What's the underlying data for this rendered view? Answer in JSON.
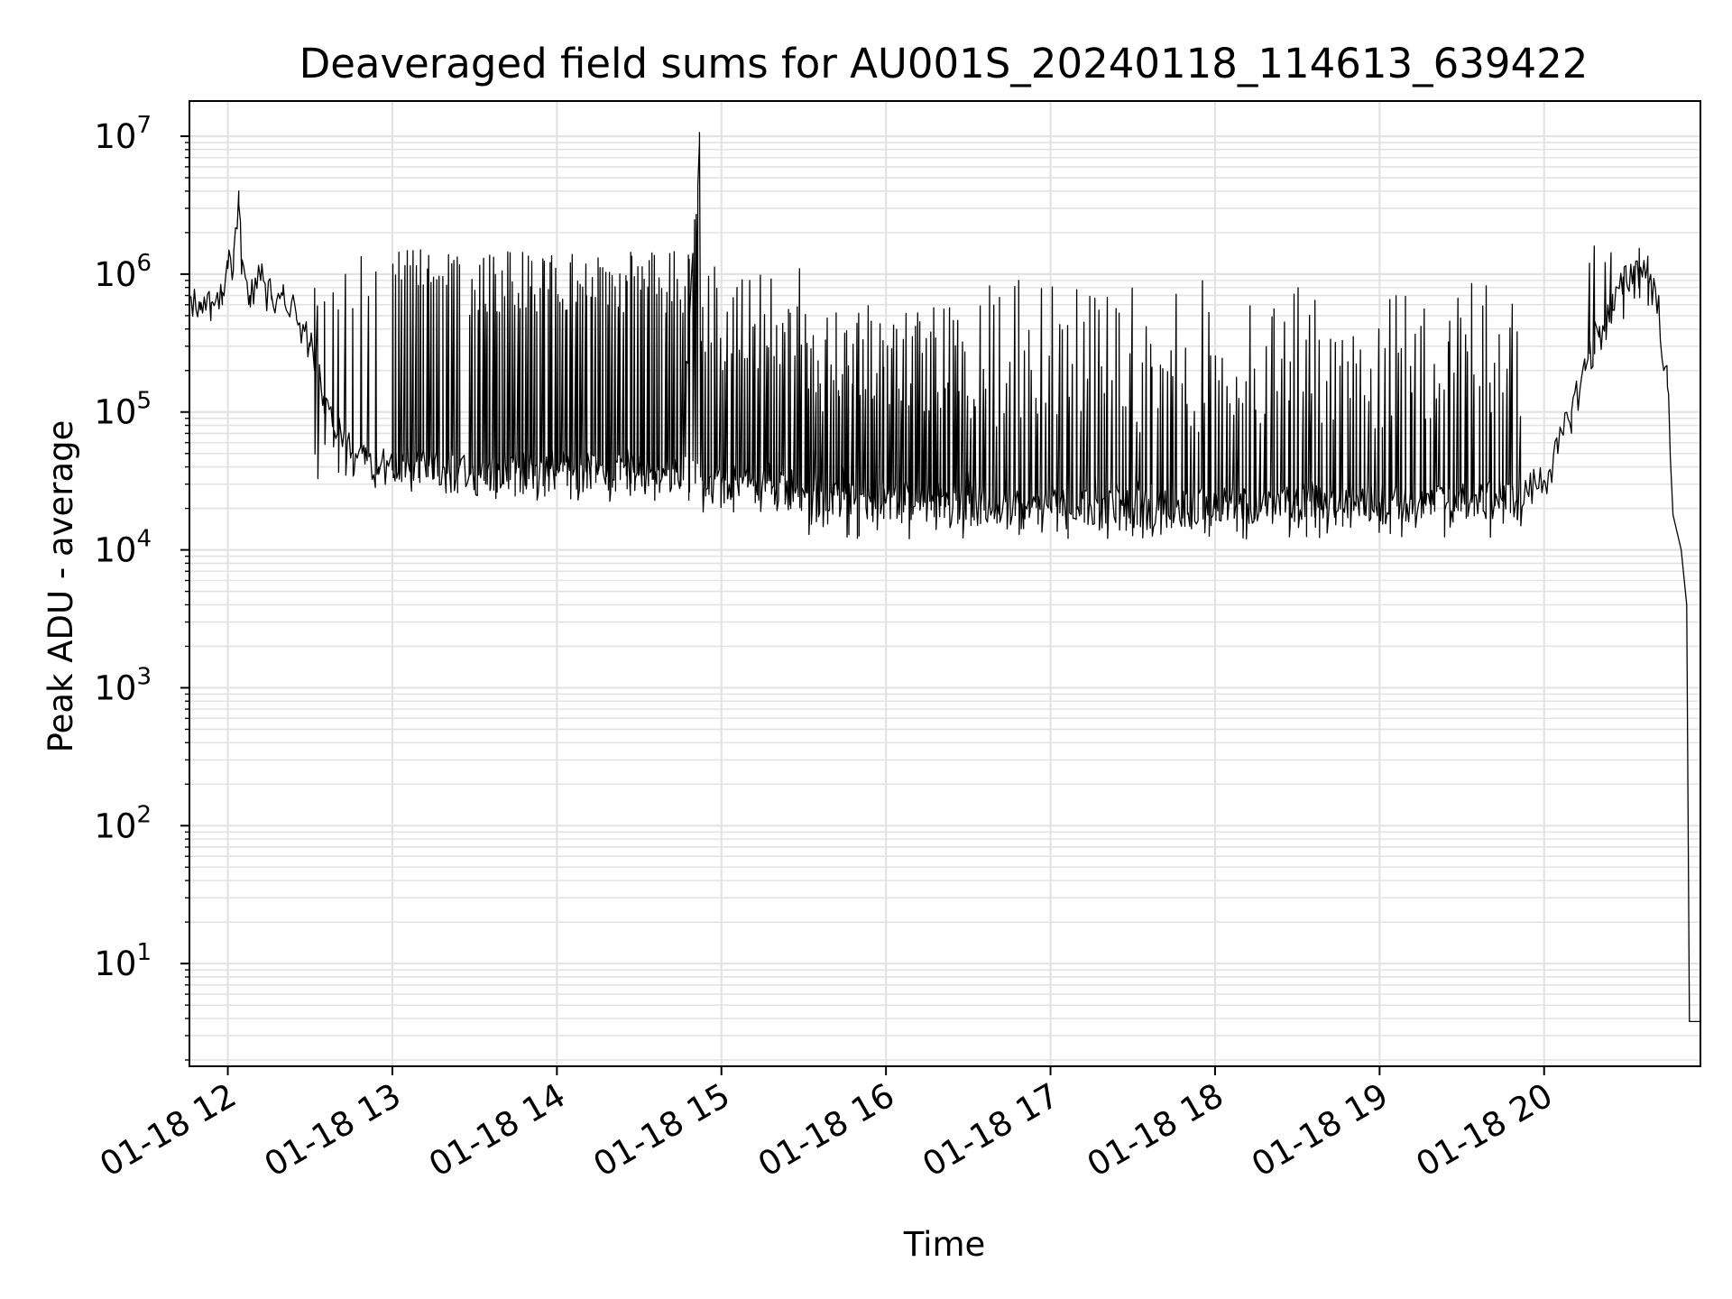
{
  "chart_data": {
    "type": "line",
    "title": "Deaveraged field sums for AU001S_20240118_114613_639422",
    "xlabel": "Time",
    "ylabel": "Peak ADU - average",
    "yscale": "log",
    "ylim": [
      1.8,
      18000000
    ],
    "xlim": [
      "2024-01-18 11:46",
      "2024-01-18 20:57"
    ],
    "grid": "on",
    "colors": {
      "line": "#000000",
      "grid": "#e3e3e3"
    },
    "x_ticks": [
      {
        "t": "2024-01-18 12:00",
        "label": "01-18 12"
      },
      {
        "t": "2024-01-18 13:00",
        "label": "01-18 13"
      },
      {
        "t": "2024-01-18 14:00",
        "label": "01-18 14"
      },
      {
        "t": "2024-01-18 15:00",
        "label": "01-18 15"
      },
      {
        "t": "2024-01-18 16:00",
        "label": "01-18 16"
      },
      {
        "t": "2024-01-18 17:00",
        "label": "01-18 17"
      },
      {
        "t": "2024-01-18 18:00",
        "label": "01-18 18"
      },
      {
        "t": "2024-01-18 19:00",
        "label": "01-18 19"
      },
      {
        "t": "2024-01-18 20:00",
        "label": "01-18 20"
      }
    ],
    "y_ticks": [
      {
        "value": 10,
        "base": "10",
        "exp": "1"
      },
      {
        "value": 100,
        "base": "10",
        "exp": "2"
      },
      {
        "value": 1000,
        "base": "10",
        "exp": "3"
      },
      {
        "value": 10000,
        "base": "10",
        "exp": "4"
      },
      {
        "value": 100000,
        "base": "10",
        "exp": "5"
      },
      {
        "value": 1000000,
        "base": "10",
        "exp": "6"
      },
      {
        "value": 10000000,
        "base": "10",
        "exp": "7"
      }
    ],
    "series": [
      {
        "values": [
          [
            "2024-01-18 11:46",
            600000
          ],
          [
            "2024-01-18 11:50",
            550000
          ],
          [
            "2024-01-18 11:54",
            620000
          ],
          [
            "2024-01-18 11:58",
            600000
          ],
          [
            "2024-01-18 12:00",
            1100000
          ],
          [
            "2024-01-18 12:02",
            1050000
          ],
          [
            "2024-01-18 12:04",
            4000000
          ],
          [
            "2024-01-18 12:05",
            1000000
          ],
          [
            "2024-01-18 12:08",
            700000
          ],
          [
            "2024-01-18 12:12",
            900000
          ],
          [
            "2024-01-18 12:16",
            650000
          ],
          [
            "2024-01-18 12:20",
            700000
          ],
          [
            "2024-01-18 12:25",
            500000
          ],
          [
            "2024-01-18 12:30",
            300000
          ],
          [
            "2024-01-18 12:35",
            130000
          ],
          [
            "2024-01-18 12:40",
            70000
          ],
          [
            "2024-01-18 12:45",
            50000
          ],
          [
            "2024-01-18 12:50",
            42000
          ],
          [
            "2024-01-18 12:55",
            40000
          ],
          [
            "2024-01-18 13:00",
            38000
          ],
          [
            "2024-01-18 13:10",
            38000
          ],
          [
            "2024-01-18 13:20",
            36000
          ],
          [
            "2024-01-18 13:30",
            35000
          ],
          [
            "2024-01-18 13:45",
            36000
          ],
          [
            "2024-01-18 14:00",
            38000
          ],
          [
            "2024-01-18 14:15",
            36000
          ],
          [
            "2024-01-18 14:30",
            35000
          ],
          [
            "2024-01-18 14:45",
            33000
          ],
          [
            "2024-01-18 14:52",
            9000000
          ],
          [
            "2024-01-18 14:53",
            32000
          ],
          [
            "2024-01-18 15:00",
            30000
          ],
          [
            "2024-01-18 15:20",
            28000
          ],
          [
            "2024-01-18 15:40",
            26000
          ],
          [
            "2024-01-18 16:00",
            22000
          ],
          [
            "2024-01-18 16:20",
            21000
          ],
          [
            "2024-01-18 16:40",
            20000
          ],
          [
            "2024-01-18 17:00",
            20000
          ],
          [
            "2024-01-18 17:30",
            20000
          ],
          [
            "2024-01-18 18:00",
            20000
          ],
          [
            "2024-01-18 18:30",
            21000
          ],
          [
            "2024-01-18 19:00",
            22000
          ],
          [
            "2024-01-18 19:30",
            22000
          ],
          [
            "2024-01-18 19:50",
            23000
          ],
          [
            "2024-01-18 20:00",
            32000
          ],
          [
            "2024-01-18 20:05",
            50000
          ],
          [
            "2024-01-18 20:10",
            100000
          ],
          [
            "2024-01-18 20:15",
            200000
          ],
          [
            "2024-01-18 20:20",
            350000
          ],
          [
            "2024-01-18 20:25",
            550000
          ],
          [
            "2024-01-18 20:30",
            900000
          ],
          [
            "2024-01-18 20:35",
            1100000
          ],
          [
            "2024-01-18 20:39",
            900000
          ],
          [
            "2024-01-18 20:42",
            500000
          ],
          [
            "2024-01-18 20:45",
            150000
          ],
          [
            "2024-01-18 20:47",
            18000
          ],
          [
            "2024-01-18 20:50",
            10000
          ],
          [
            "2024-01-18 20:52",
            4000
          ],
          [
            "2024-01-18 20:53",
            3.8
          ],
          [
            "2024-01-18 20:57",
            3.8
          ]
        ]
      }
    ],
    "spikes": [
      {
        "from": "2024-01-18 12:30",
        "to": "2024-01-18 12:55",
        "count": 10,
        "base_lo": 30000,
        "base_hi": 60000,
        "peak_lo": 300000,
        "peak_hi": 1400000
      },
      {
        "from": "2024-01-18 13:00",
        "to": "2024-01-18 13:25",
        "count": 25,
        "base_lo": 30000,
        "base_hi": 60000,
        "peak_lo": 800000,
        "peak_hi": 1500000
      },
      {
        "from": "2024-01-18 13:28",
        "to": "2024-01-18 14:50",
        "count": 90,
        "base_lo": 22000,
        "base_hi": 55000,
        "peak_lo": 500000,
        "peak_hi": 1500000
      },
      {
        "from": "2024-01-18 14:50",
        "to": "2024-01-18 15:30",
        "count": 40,
        "base_lo": 18000,
        "base_hi": 45000,
        "peak_lo": 200000,
        "peak_hi": 1300000
      },
      {
        "from": "2024-01-18 15:30",
        "to": "2024-01-18 16:30",
        "count": 70,
        "base_lo": 12000,
        "base_hi": 40000,
        "peak_lo": 100000,
        "peak_hi": 600000
      },
      {
        "from": "2024-01-18 16:30",
        "to": "2024-01-18 19:52",
        "count": 160,
        "base_lo": 12000,
        "base_hi": 35000,
        "peak_lo": 70000,
        "peak_hi": 900000
      },
      {
        "from": "2024-01-18 20:15",
        "to": "2024-01-18 20:40",
        "count": 8,
        "base_lo": 300000,
        "base_hi": 700000,
        "peak_lo": 800000,
        "peak_hi": 1600000
      }
    ]
  }
}
